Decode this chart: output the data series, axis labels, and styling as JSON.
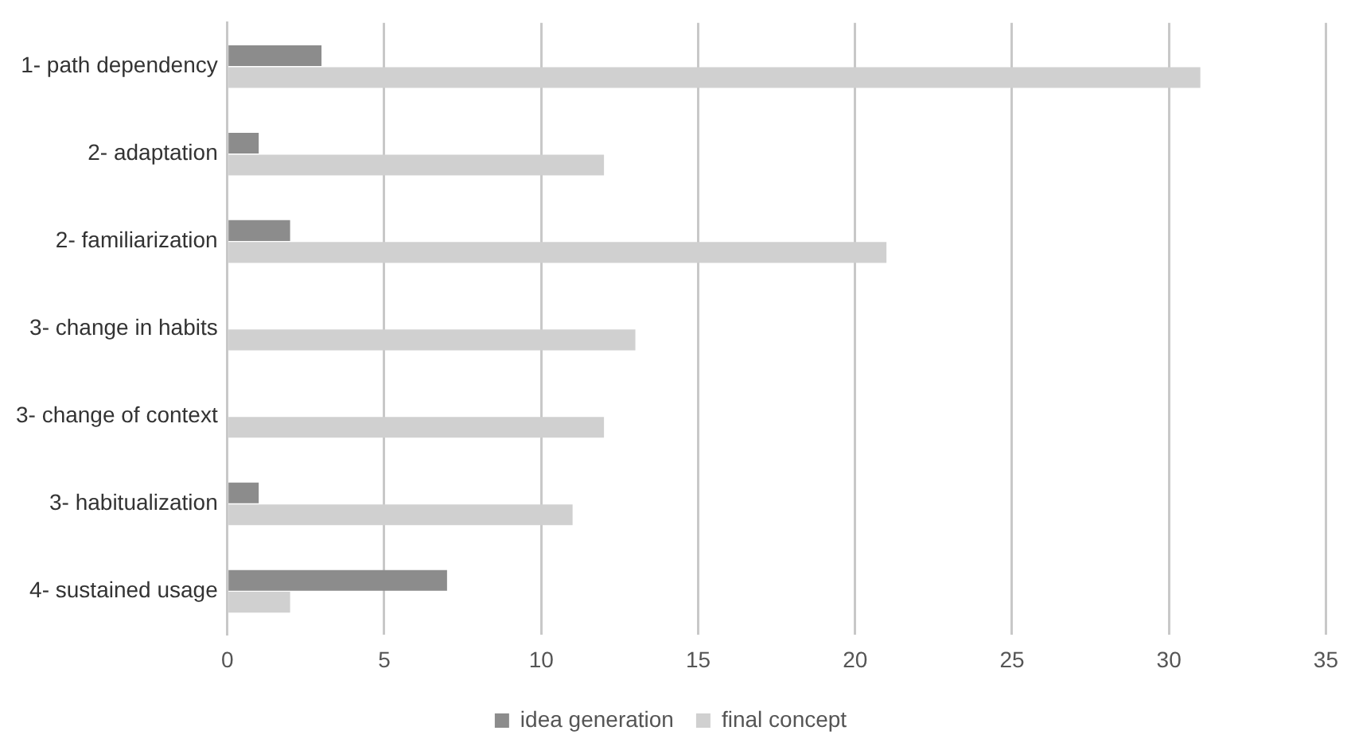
{
  "chart_data": {
    "type": "bar",
    "orientation": "horizontal",
    "categories": [
      "1- path dependency",
      "2- adaptation",
      "2- familiarization",
      "3- change in habits",
      "3- change of context",
      "3- habitualization",
      "4- sustained usage"
    ],
    "series": [
      {
        "name": "idea generation",
        "color": "#8c8c8c",
        "values": [
          3,
          1,
          2,
          0,
          0,
          1,
          7
        ]
      },
      {
        "name": "final concept",
        "color": "#d0d0d0",
        "values": [
          31,
          12,
          21,
          13,
          12,
          11,
          2
        ]
      }
    ],
    "xlim": [
      0,
      35
    ],
    "xticks": [
      0,
      5,
      10,
      15,
      20,
      25,
      30,
      35
    ],
    "grid": "x",
    "legend": "bottom"
  }
}
